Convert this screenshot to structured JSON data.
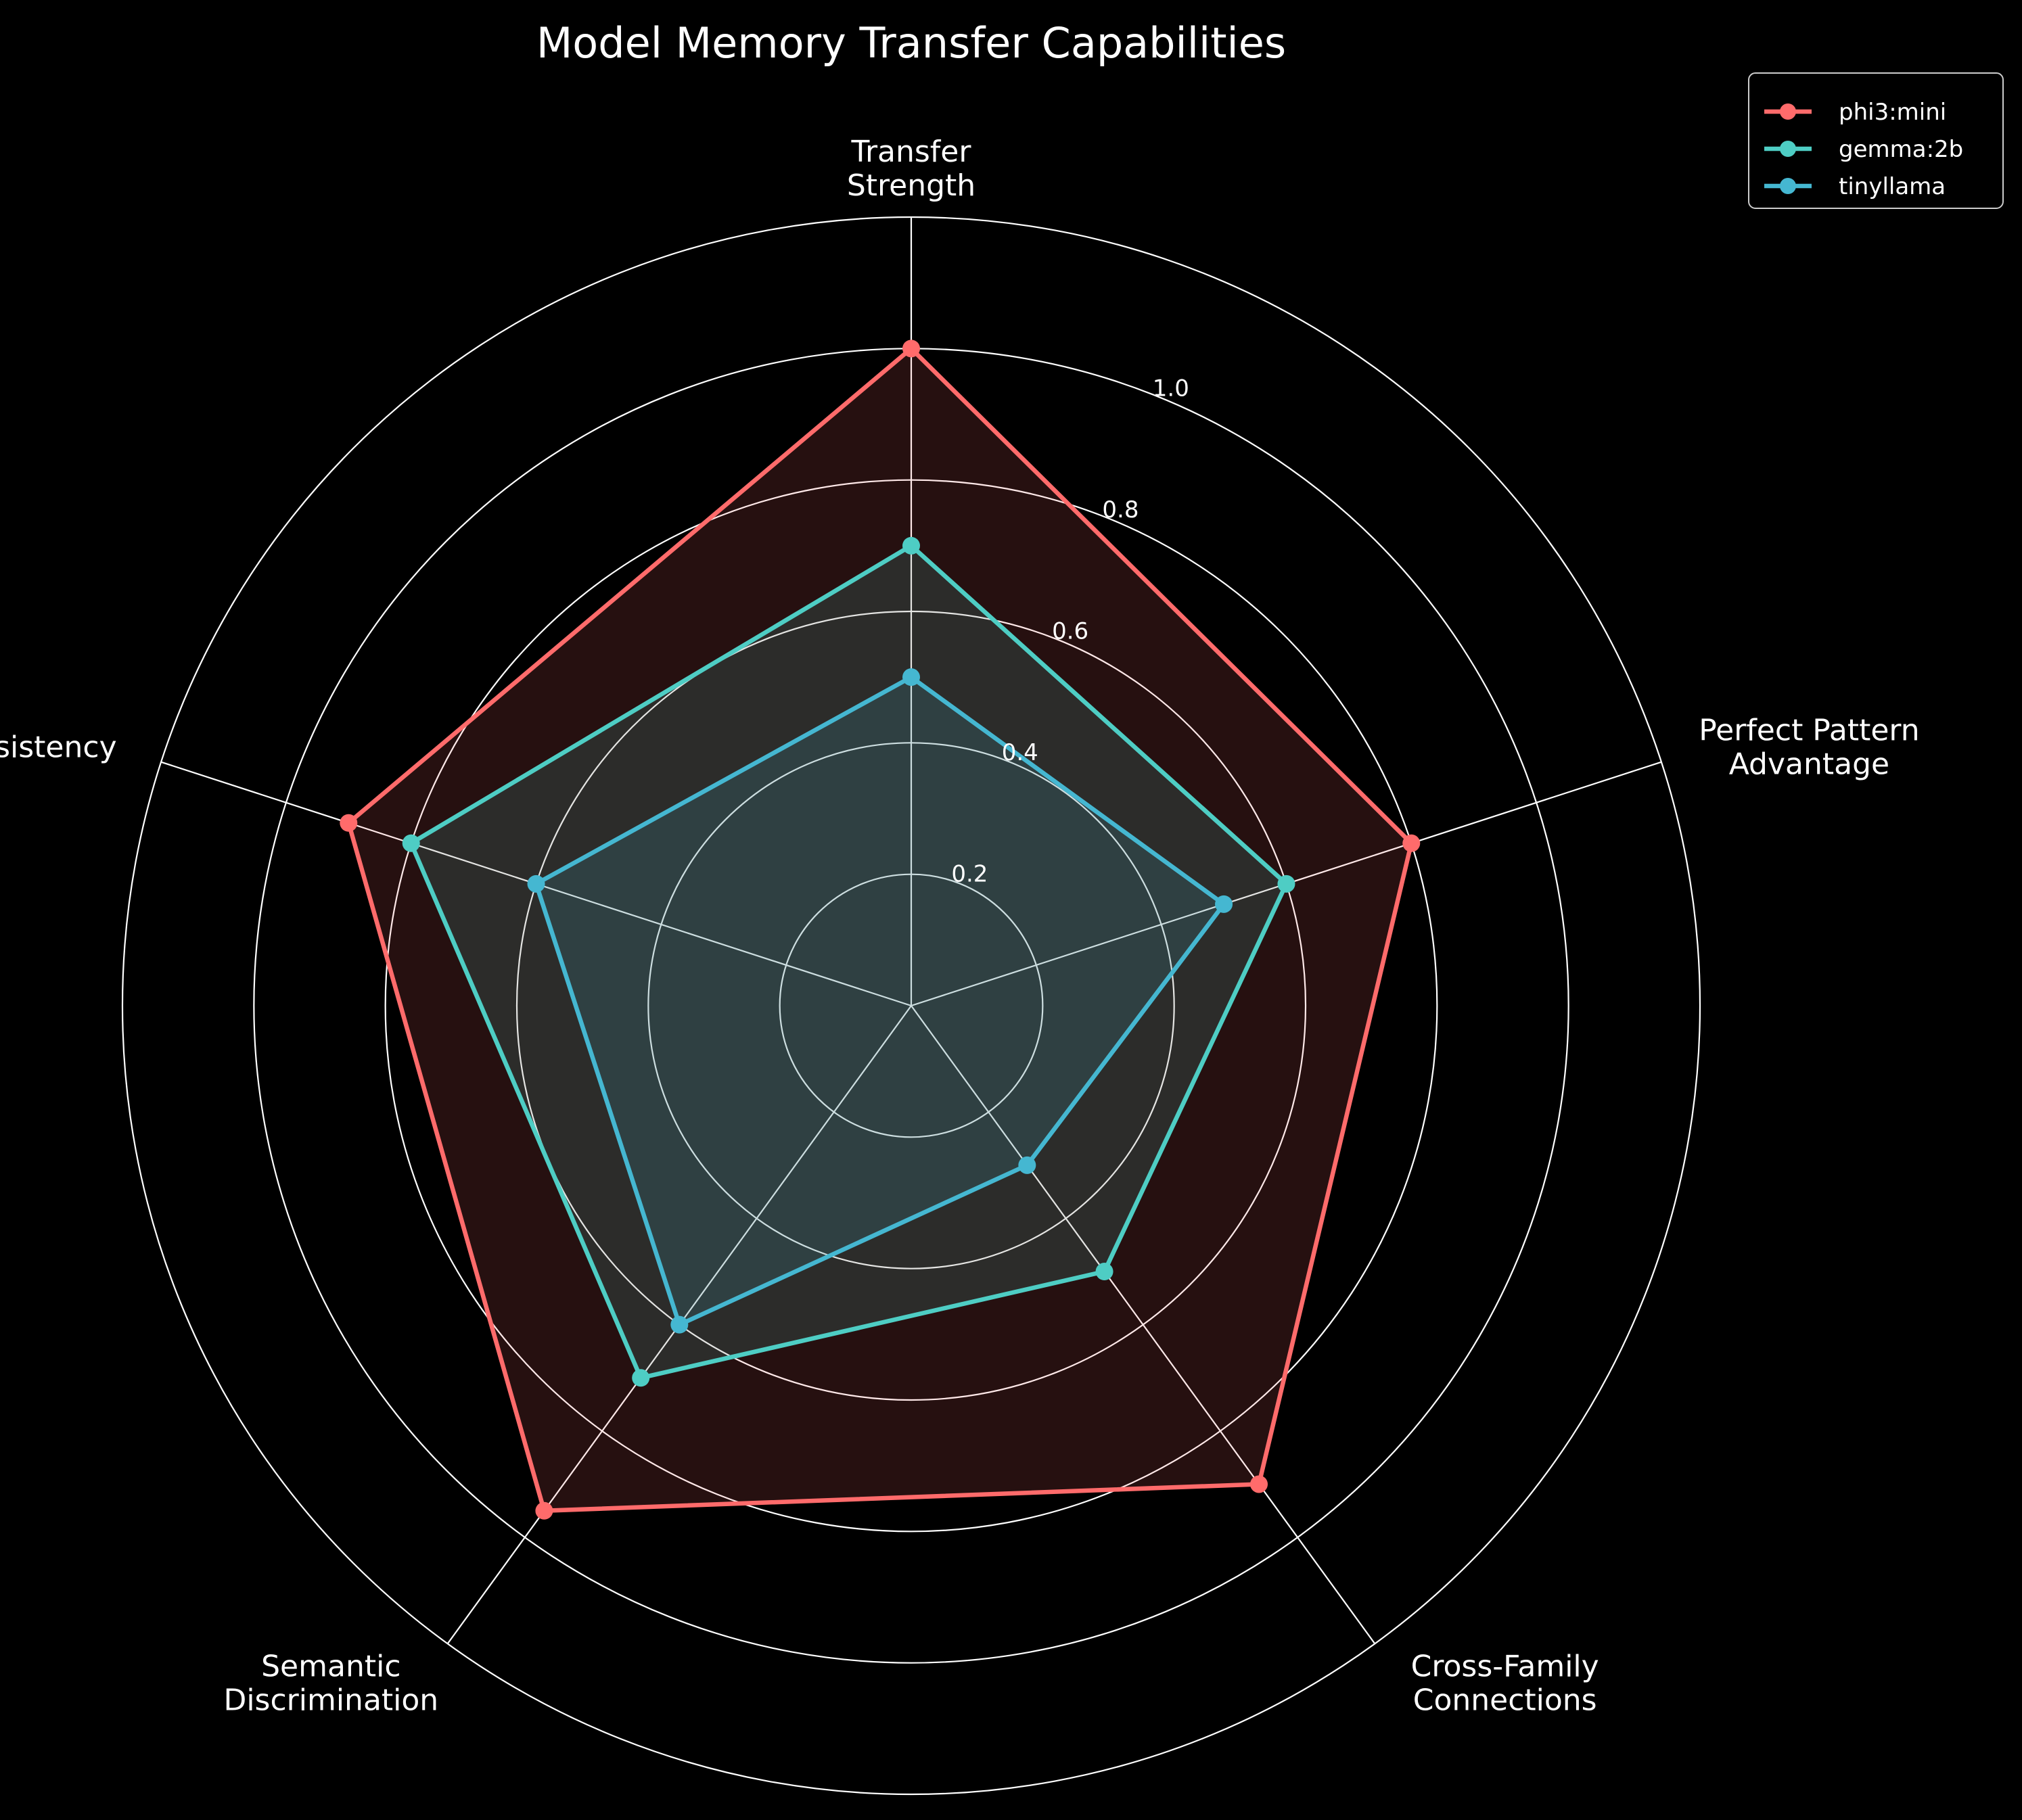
{
  "chart_data": {
    "type": "radar",
    "title": "Model Memory Transfer Capabilities",
    "axes": [
      [
        "Transfer",
        "Strength"
      ],
      [
        "Perfect Pattern",
        "Advantage"
      ],
      [
        "Cross-Family",
        "Connections"
      ],
      [
        "Semantic",
        "Discrimination"
      ],
      [
        "Consistency"
      ]
    ],
    "rlim": [
      0,
      1.2
    ],
    "ticks": [
      0.2,
      0.4,
      0.6,
      0.8,
      1.0
    ],
    "tick_labels": [
      "0.2",
      "0.4",
      "0.6",
      "0.8",
      "1.0"
    ],
    "grid": true,
    "legend_position": "top-right",
    "series": [
      {
        "name": "phi3:mini",
        "color": "#ff6b6b",
        "values": [
          1.0,
          0.8,
          0.9,
          0.95,
          0.9
        ]
      },
      {
        "name": "gemma:2b",
        "color": "#4ecdc4",
        "values": [
          0.7,
          0.6,
          0.5,
          0.7,
          0.8
        ]
      },
      {
        "name": "tinyllama",
        "color": "#45b7d1",
        "values": [
          0.5,
          0.5,
          0.3,
          0.6,
          0.6
        ]
      }
    ]
  },
  "colors": {
    "background": "#000000",
    "grid": "#ffffff",
    "text": "#ffffff"
  }
}
